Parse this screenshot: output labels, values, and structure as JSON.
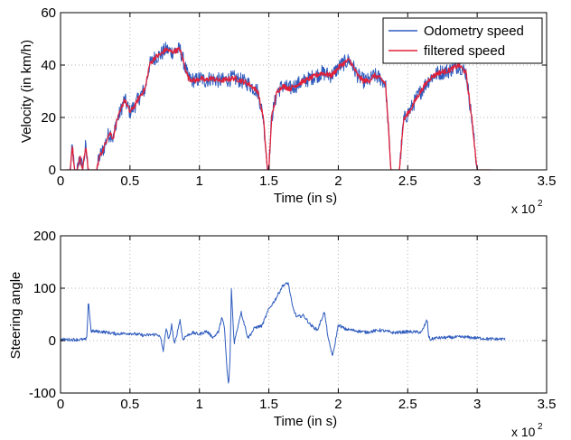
{
  "colors": {
    "odometry": "#2e5bbd",
    "filtered": "#e0203a",
    "grid": "#b3b3b3",
    "axis": "#000000"
  },
  "chart_data": [
    {
      "type": "line",
      "xlabel": "Time (in s)",
      "ylabel": "Velocity (in km/h)",
      "x_multiplier": "x 10",
      "x_multiplier_exp": "2",
      "xlim": [
        0,
        3.5
      ],
      "ylim": [
        0,
        60
      ],
      "xticks": [
        "0",
        "0.5",
        "1",
        "1.5",
        "2",
        "2.5",
        "3",
        "3.5"
      ],
      "yticks": [
        "0",
        "20",
        "40",
        "60"
      ],
      "grid": true,
      "legend_position": "top-right",
      "series": [
        {
          "name": "Odometry speed",
          "noise": 3,
          "x": [
            0.04,
            0.07,
            0.085,
            0.1,
            0.12,
            0.14,
            0.16,
            0.18,
            0.2,
            0.23,
            0.26,
            0.28,
            0.31,
            0.34,
            0.36,
            0.38,
            0.4,
            0.43,
            0.46,
            0.5,
            0.54,
            0.57,
            0.61,
            0.64,
            0.68,
            0.72,
            0.76,
            0.8,
            0.86,
            0.92,
            0.97,
            1.01,
            1.04,
            1.08,
            1.15,
            1.25,
            1.35,
            1.42,
            1.46,
            1.49,
            1.5,
            1.52,
            1.56,
            1.6,
            1.65,
            1.72,
            1.8,
            1.88,
            1.95,
            2.02,
            2.08,
            2.14,
            2.18,
            2.22,
            2.26,
            2.3,
            2.34,
            2.38,
            2.4,
            2.42,
            2.44,
            2.47,
            2.52,
            2.57,
            2.62,
            2.66,
            2.72,
            2.8,
            2.87,
            2.92,
            2.96,
            3.0,
            3.1
          ],
          "y": [
            0,
            0,
            9,
            0,
            0,
            5,
            0,
            9,
            0,
            0,
            0,
            5,
            8,
            13,
            14,
            12,
            18,
            22,
            27,
            22,
            25,
            28,
            31,
            40,
            43,
            44,
            46,
            45,
            46,
            35,
            34,
            35,
            34,
            35,
            34,
            35,
            33,
            30,
            20,
            0,
            0,
            20,
            30,
            32,
            31,
            33,
            35,
            37,
            36,
            40,
            42,
            36,
            34,
            34,
            36,
            35,
            33,
            0,
            0,
            0,
            0,
            19,
            23,
            28,
            32,
            35,
            37,
            38,
            40,
            37,
            20,
            0,
            0
          ]
        },
        {
          "name": "filtered speed",
          "noise": 1,
          "x": [
            0.04,
            0.07,
            0.085,
            0.1,
            0.12,
            0.14,
            0.16,
            0.18,
            0.2,
            0.23,
            0.26,
            0.28,
            0.31,
            0.34,
            0.36,
            0.38,
            0.4,
            0.43,
            0.46,
            0.5,
            0.54,
            0.57,
            0.61,
            0.64,
            0.68,
            0.72,
            0.76,
            0.8,
            0.86,
            0.92,
            0.97,
            1.01,
            1.04,
            1.08,
            1.15,
            1.25,
            1.35,
            1.42,
            1.46,
            1.49,
            1.5,
            1.52,
            1.56,
            1.6,
            1.65,
            1.72,
            1.8,
            1.88,
            1.95,
            2.02,
            2.08,
            2.14,
            2.18,
            2.22,
            2.26,
            2.3,
            2.34,
            2.38,
            2.4,
            2.42,
            2.44,
            2.47,
            2.52,
            2.57,
            2.62,
            2.66,
            2.72,
            2.8,
            2.87,
            2.92,
            2.96,
            3.0,
            3.1
          ],
          "y": [
            0,
            0,
            9,
            0,
            0,
            5,
            0,
            9,
            0,
            0,
            0,
            5,
            8,
            13,
            14,
            12,
            18,
            22,
            27,
            22,
            25,
            28,
            31,
            40,
            43,
            44,
            46,
            45,
            46,
            35,
            34,
            35,
            34,
            35,
            34,
            35,
            33,
            30,
            20,
            0,
            0,
            20,
            30,
            32,
            31,
            33,
            35,
            37,
            36,
            40,
            42,
            36,
            34,
            34,
            36,
            35,
            33,
            0,
            0,
            0,
            0,
            19,
            23,
            28,
            32,
            35,
            37,
            38,
            40,
            37,
            20,
            0,
            0
          ]
        }
      ]
    },
    {
      "type": "line",
      "xlabel": "Time (in s)",
      "ylabel": "Steering angle",
      "x_multiplier": "x 10",
      "x_multiplier_exp": "2",
      "xlim": [
        0,
        3.5
      ],
      "ylim": [
        -100,
        200
      ],
      "xticks": [
        "0",
        "0.5",
        "1",
        "1.5",
        "2",
        "2.5",
        "3",
        "3.5"
      ],
      "yticks": [
        "-100",
        "0",
        "100",
        "200"
      ],
      "grid": true,
      "series": [
        {
          "noise": 3,
          "x": [
            0.0,
            0.18,
            0.19,
            0.2,
            0.22,
            0.3,
            0.4,
            0.5,
            0.6,
            0.7,
            0.72,
            0.74,
            0.76,
            0.78,
            0.8,
            0.82,
            0.84,
            0.86,
            0.88,
            0.9,
            0.95,
            1.0,
            1.05,
            1.1,
            1.14,
            1.16,
            1.18,
            1.2,
            1.21,
            1.22,
            1.23,
            1.25,
            1.3,
            1.35,
            1.4,
            1.45,
            1.5,
            1.55,
            1.6,
            1.64,
            1.67,
            1.7,
            1.75,
            1.8,
            1.85,
            1.9,
            1.93,
            1.96,
            2.0,
            2.05,
            2.1,
            2.2,
            2.3,
            2.4,
            2.5,
            2.6,
            2.64,
            2.65,
            2.66,
            2.7,
            2.8,
            2.9,
            3.0,
            3.1,
            3.2
          ],
          "y": [
            2,
            2,
            5,
            78,
            18,
            17,
            13,
            14,
            10,
            12,
            5,
            -20,
            25,
            0,
            30,
            -8,
            15,
            40,
            2,
            8,
            15,
            12,
            18,
            6,
            18,
            45,
            25,
            -60,
            -85,
            -40,
            100,
            -5,
            55,
            5,
            25,
            28,
            60,
            80,
            105,
            110,
            65,
            45,
            48,
            30,
            20,
            55,
            0,
            -30,
            30,
            22,
            20,
            16,
            20,
            15,
            17,
            16,
            40,
            10,
            2,
            5,
            6,
            7,
            5,
            3,
            3
          ]
        }
      ]
    }
  ]
}
